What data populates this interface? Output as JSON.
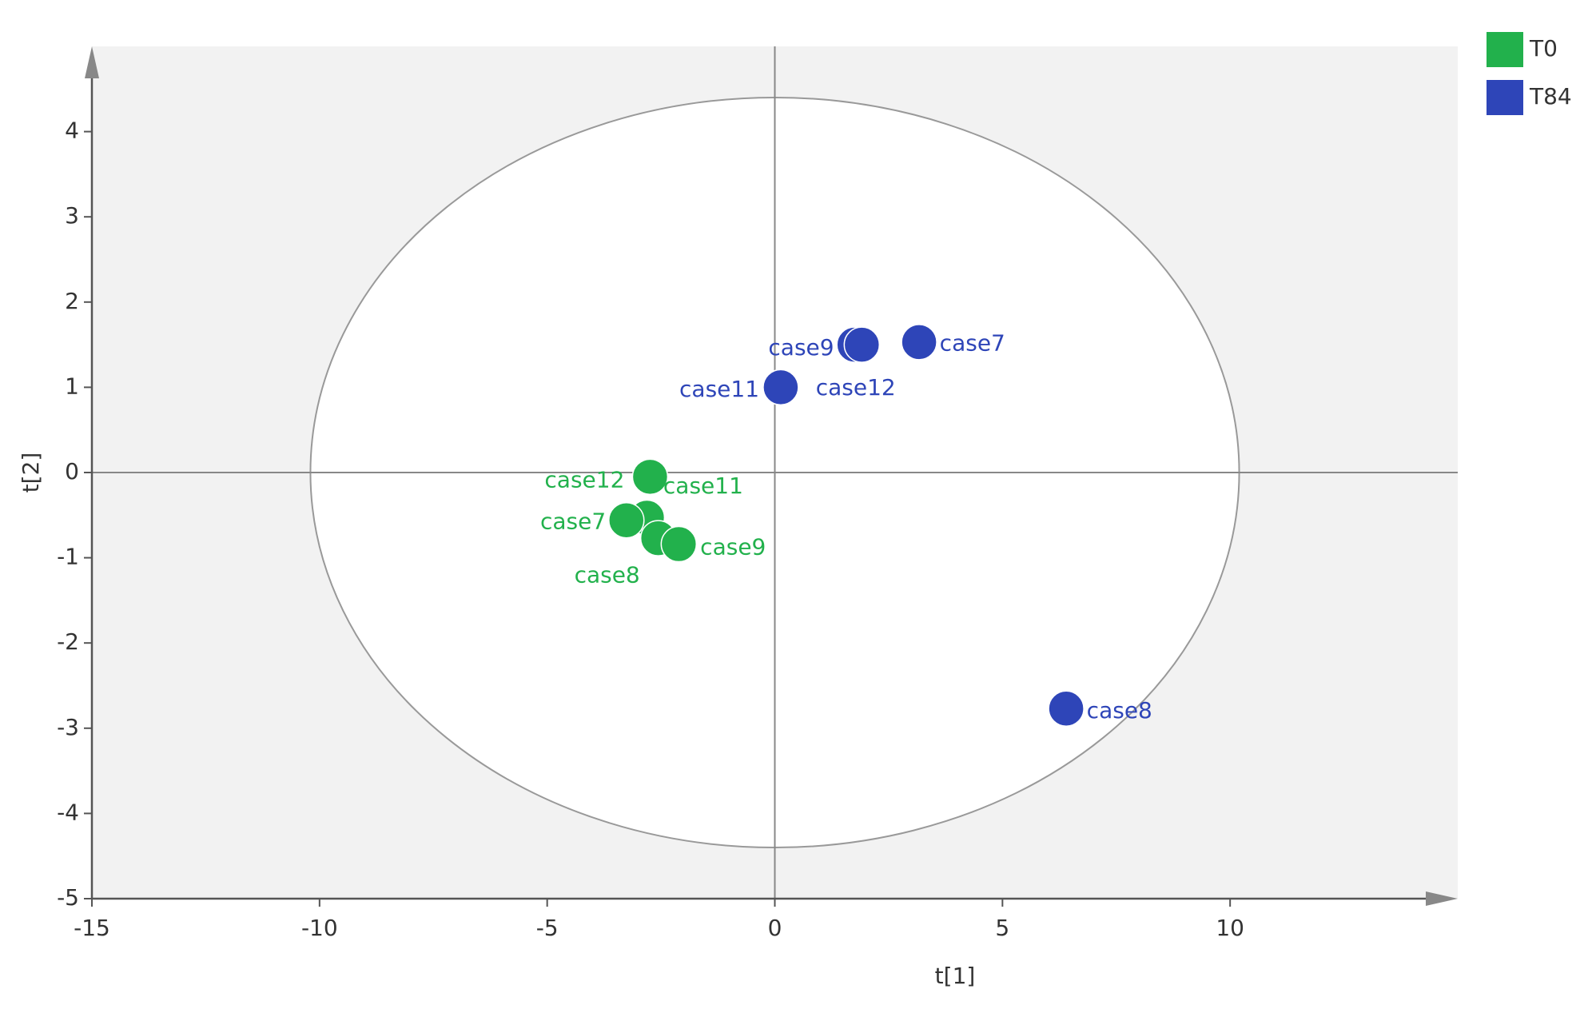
{
  "chart_data": {
    "type": "scatter",
    "x_label": "t[1]",
    "y_label": "t[2]",
    "xlim": [
      -15,
      15
    ],
    "ylim": [
      -5,
      5
    ],
    "xticks": [
      -15,
      -10,
      -5,
      0,
      5,
      10
    ],
    "yticks": [
      -5,
      -4,
      -3,
      -2,
      -1,
      0,
      1,
      2,
      3,
      4
    ],
    "ellipse": {
      "rx": 10.2,
      "ry": 4.4
    },
    "legend": "top-right",
    "series": [
      {
        "name": "T0",
        "color": "#22b14c",
        "labels": [
          "case12",
          "case11",
          "case7",
          "case8",
          "case9"
        ],
        "x": [
          -2.74,
          -2.81,
          -3.26,
          -2.56,
          -2.11
        ],
        "values": [
          -0.05,
          -0.53,
          -0.56,
          -0.77,
          -0.84
        ]
      },
      {
        "name": "T84",
        "color": "#2e45b8",
        "labels": [
          "case9",
          "case12",
          "case7",
          "case11",
          "case8"
        ],
        "x": [
          1.75,
          1.91,
          3.17,
          0.13,
          6.4
        ],
        "values": [
          1.5,
          1.5,
          1.53,
          1.0,
          -2.77
        ]
      }
    ]
  }
}
